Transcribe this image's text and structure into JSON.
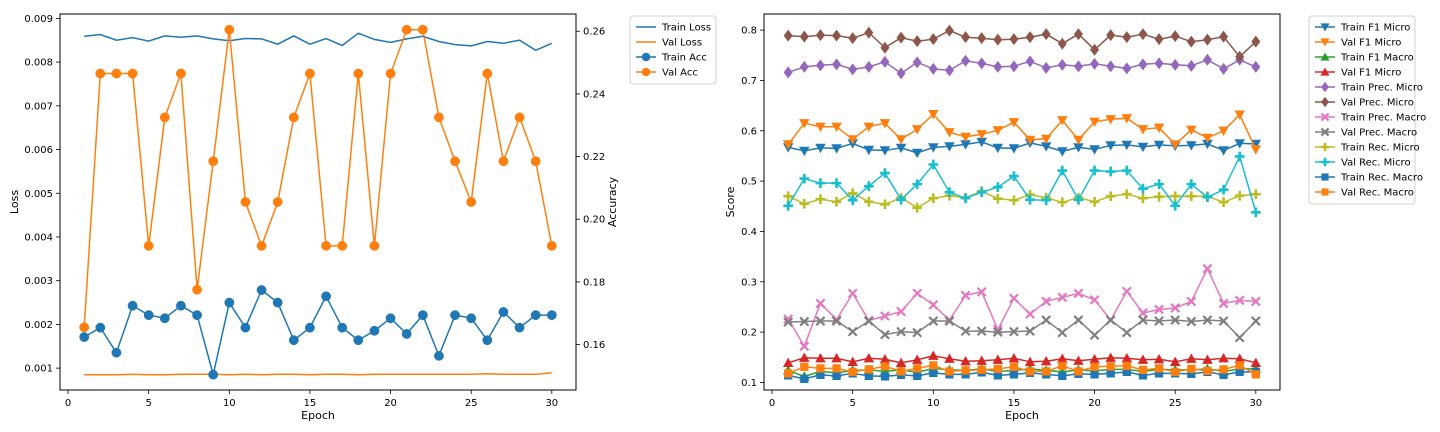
{
  "chart_data": [
    {
      "type": "line",
      "xlabel": "Epoch",
      "ylabel": "Loss",
      "y2label": "Accuracy",
      "xlim": [
        -0.5,
        31.5
      ],
      "ylim": [
        0.0005,
        0.0091
      ],
      "y2lim": [
        0.1455,
        0.2655
      ],
      "xticks": [
        0,
        5,
        10,
        15,
        20,
        25,
        30
      ],
      "yticks": [
        0.001,
        0.002,
        0.003,
        0.004,
        0.005,
        0.006,
        0.007,
        0.008,
        0.009
      ],
      "ytick_labels": [
        "0.001",
        "0.002",
        "0.003",
        "0.004",
        "0.005",
        "0.006",
        "0.007",
        "0.008",
        "0.009"
      ],
      "y2ticks": [
        0.16,
        0.18,
        0.2,
        0.22,
        0.24,
        0.26
      ],
      "y2tick_labels": [
        "0.16",
        "0.18",
        "0.20",
        "0.22",
        "0.24",
        "0.26"
      ],
      "grid": false,
      "legend_position": "outside-right-top",
      "x": [
        1,
        2,
        3,
        4,
        5,
        6,
        7,
        8,
        9,
        10,
        11,
        12,
        13,
        14,
        15,
        16,
        17,
        18,
        19,
        20,
        21,
        22,
        23,
        24,
        25,
        26,
        27,
        28,
        29,
        30
      ],
      "series": [
        {
          "name": "Train Loss",
          "axis": "left",
          "color": "#1f77b4",
          "marker": "none",
          "values": [
            0.00859,
            0.00863,
            0.0085,
            0.00856,
            0.00848,
            0.0086,
            0.00857,
            0.0086,
            0.00853,
            0.00849,
            0.00854,
            0.00853,
            0.00841,
            0.0086,
            0.00841,
            0.00854,
            0.00838,
            0.00866,
            0.00852,
            0.00845,
            0.00853,
            0.00859,
            0.00847,
            0.0084,
            0.00837,
            0.00847,
            0.00843,
            0.0085,
            0.00827,
            0.00843
          ]
        },
        {
          "name": "Val Loss",
          "axis": "left",
          "color": "#ff7f0e",
          "marker": "none",
          "values": [
            0.00085,
            0.00085,
            0.00085,
            0.00086,
            0.00085,
            0.00085,
            0.00086,
            0.00086,
            0.00086,
            0.00085,
            0.00086,
            0.00085,
            0.00086,
            0.00086,
            0.00085,
            0.00086,
            0.00086,
            0.00085,
            0.00086,
            0.00086,
            0.00086,
            0.00086,
            0.00086,
            0.00086,
            0.00086,
            0.00087,
            0.00086,
            0.00086,
            0.00086,
            0.00089
          ]
        },
        {
          "name": "Train Acc",
          "axis": "right",
          "color": "#1f77b4",
          "marker": "circle",
          "values": [
            0.1624,
            0.1654,
            0.1574,
            0.1724,
            0.1694,
            0.1684,
            0.1724,
            0.1694,
            0.1504,
            0.1734,
            0.1654,
            0.1774,
            0.1734,
            0.1614,
            0.1654,
            0.1754,
            0.1654,
            0.1614,
            0.1644,
            0.1684,
            0.1634,
            0.1694,
            0.1564,
            0.1694,
            0.1684,
            0.1614,
            0.1704,
            0.1654,
            0.1694,
            0.1694
          ]
        },
        {
          "name": "Val Acc",
          "axis": "right",
          "color": "#ff7f0e",
          "marker": "circle",
          "values": [
            0.1655,
            0.2465,
            0.2465,
            0.2465,
            0.1915,
            0.2325,
            0.2465,
            0.1775,
            0.2185,
            0.2605,
            0.2055,
            0.1915,
            0.2055,
            0.2325,
            0.2465,
            0.1915,
            0.1915,
            0.2465,
            0.1915,
            0.2465,
            0.2605,
            0.2605,
            0.2325,
            0.2185,
            0.2055,
            0.2465,
            0.2185,
            0.2325,
            0.2185,
            0.1915
          ]
        }
      ]
    },
    {
      "type": "line",
      "xlabel": "Epoch",
      "ylabel": "Score",
      "xlim": [
        -0.5,
        31.5
      ],
      "ylim": [
        0.085,
        0.832
      ],
      "xticks": [
        0,
        5,
        10,
        15,
        20,
        25,
        30
      ],
      "yticks": [
        0.1,
        0.2,
        0.3,
        0.4,
        0.5,
        0.6,
        0.7,
        0.8
      ],
      "ytick_labels": [
        "0.1",
        "0.2",
        "0.3",
        "0.4",
        "0.5",
        "0.6",
        "0.7",
        "0.8"
      ],
      "grid": false,
      "legend_position": "outside-right-top",
      "x": [
        1,
        2,
        3,
        4,
        5,
        6,
        7,
        8,
        9,
        10,
        11,
        12,
        13,
        14,
        15,
        16,
        17,
        18,
        19,
        20,
        21,
        22,
        23,
        24,
        25,
        26,
        27,
        28,
        29,
        30
      ],
      "series": [
        {
          "name": "Train F1 Micro",
          "color": "#1f77b4",
          "marker": "tri_down",
          "values": [
            0.567,
            0.56,
            0.566,
            0.565,
            0.575,
            0.562,
            0.561,
            0.566,
            0.556,
            0.567,
            0.569,
            0.573,
            0.578,
            0.566,
            0.565,
            0.576,
            0.569,
            0.559,
            0.567,
            0.563,
            0.571,
            0.572,
            0.568,
            0.572,
            0.57,
            0.571,
            0.574,
            0.561,
            0.575,
            0.574
          ]
        },
        {
          "name": "Val F1 Micro",
          "color": "#ff7f0e",
          "marker": "tri_down",
          "values": [
            0.573,
            0.615,
            0.608,
            0.608,
            0.583,
            0.608,
            0.615,
            0.583,
            0.603,
            0.633,
            0.597,
            0.588,
            0.593,
            0.601,
            0.617,
            0.582,
            0.584,
            0.621,
            0.582,
            0.618,
            0.623,
            0.625,
            0.603,
            0.606,
            0.573,
            0.602,
            0.586,
            0.6,
            0.632,
            0.563
          ]
        },
        {
          "name": "Train F1 Macro",
          "color": "#2ca02c",
          "marker": "tri_up",
          "values": [
            0.124,
            0.112,
            0.122,
            0.119,
            0.124,
            0.125,
            0.122,
            0.125,
            0.12,
            0.128,
            0.125,
            0.124,
            0.127,
            0.122,
            0.124,
            0.127,
            0.124,
            0.121,
            0.125,
            0.123,
            0.126,
            0.126,
            0.122,
            0.126,
            0.125,
            0.125,
            0.127,
            0.122,
            0.127,
            0.127
          ]
        },
        {
          "name": "Val F1 Micro",
          "color": "#d62728",
          "marker": "tri_up",
          "values": [
            0.139,
            0.149,
            0.148,
            0.148,
            0.141,
            0.148,
            0.146,
            0.139,
            0.145,
            0.153,
            0.147,
            0.142,
            0.143,
            0.145,
            0.148,
            0.141,
            0.142,
            0.147,
            0.143,
            0.146,
            0.149,
            0.148,
            0.145,
            0.146,
            0.141,
            0.147,
            0.145,
            0.148,
            0.147,
            0.139
          ]
        },
        {
          "name": "Train Prec. Micro",
          "color": "#9467bd",
          "marker": "diamond",
          "values": [
            0.716,
            0.727,
            0.73,
            0.732,
            0.722,
            0.727,
            0.737,
            0.714,
            0.736,
            0.723,
            0.72,
            0.739,
            0.734,
            0.727,
            0.728,
            0.738,
            0.725,
            0.731,
            0.728,
            0.733,
            0.728,
            0.724,
            0.732,
            0.734,
            0.731,
            0.729,
            0.741,
            0.723,
            0.741,
            0.727
          ]
        },
        {
          "name": "Val Prec. Micro",
          "color": "#8c564b",
          "marker": "diamond",
          "values": [
            0.789,
            0.787,
            0.79,
            0.789,
            0.784,
            0.795,
            0.765,
            0.785,
            0.778,
            0.782,
            0.799,
            0.786,
            0.784,
            0.781,
            0.782,
            0.786,
            0.792,
            0.773,
            0.792,
            0.761,
            0.79,
            0.786,
            0.792,
            0.782,
            0.788,
            0.777,
            0.781,
            0.787,
            0.747,
            0.777
          ]
        },
        {
          "name": "Train Prec. Macro",
          "color": "#e377c2",
          "marker": "x",
          "values": [
            0.226,
            0.172,
            0.257,
            0.225,
            0.277,
            0.223,
            0.232,
            0.241,
            0.277,
            0.254,
            0.224,
            0.273,
            0.28,
            0.205,
            0.267,
            0.236,
            0.261,
            0.269,
            0.277,
            0.264,
            0.224,
            0.281,
            0.238,
            0.245,
            0.248,
            0.261,
            0.326,
            0.257,
            0.263,
            0.261
          ]
        },
        {
          "name": "Val Prec. Macro",
          "color": "#7f7f7f",
          "marker": "x",
          "values": [
            0.22,
            0.221,
            0.222,
            0.222,
            0.201,
            0.222,
            0.195,
            0.201,
            0.199,
            0.222,
            0.222,
            0.202,
            0.202,
            0.2,
            0.201,
            0.202,
            0.224,
            0.199,
            0.224,
            0.194,
            0.224,
            0.199,
            0.224,
            0.222,
            0.224,
            0.221,
            0.224,
            0.222,
            0.189,
            0.222
          ]
        },
        {
          "name": "Train Rec. Micro",
          "color": "#bcbd22",
          "marker": "plus",
          "values": [
            0.47,
            0.455,
            0.464,
            0.459,
            0.476,
            0.459,
            0.454,
            0.467,
            0.447,
            0.466,
            0.471,
            0.467,
            0.48,
            0.465,
            0.462,
            0.473,
            0.467,
            0.458,
            0.467,
            0.459,
            0.47,
            0.474,
            0.466,
            0.469,
            0.47,
            0.47,
            0.47,
            0.458,
            0.471,
            0.474
          ]
        },
        {
          "name": "Val Rec. Micro",
          "color": "#17becf",
          "marker": "plus",
          "values": [
            0.451,
            0.505,
            0.496,
            0.496,
            0.462,
            0.49,
            0.516,
            0.463,
            0.494,
            0.533,
            0.478,
            0.466,
            0.478,
            0.488,
            0.51,
            0.463,
            0.462,
            0.521,
            0.463,
            0.521,
            0.519,
            0.521,
            0.485,
            0.494,
            0.451,
            0.494,
            0.468,
            0.483,
            0.549,
            0.438
          ]
        },
        {
          "name": "Train Rec. Macro",
          "color": "#1f77b4",
          "marker": "square",
          "values": [
            0.114,
            0.107,
            0.115,
            0.113,
            0.118,
            0.113,
            0.112,
            0.115,
            0.113,
            0.119,
            0.116,
            0.116,
            0.12,
            0.114,
            0.116,
            0.119,
            0.116,
            0.113,
            0.117,
            0.116,
            0.118,
            0.121,
            0.114,
            0.118,
            0.118,
            0.117,
            0.121,
            0.115,
            0.121,
            0.121
          ]
        },
        {
          "name": "Val Rec. Macro",
          "color": "#ff7f0e",
          "marker": "square",
          "values": [
            0.118,
            0.131,
            0.128,
            0.128,
            0.121,
            0.126,
            0.132,
            0.122,
            0.128,
            0.134,
            0.122,
            0.124,
            0.125,
            0.127,
            0.131,
            0.122,
            0.122,
            0.133,
            0.122,
            0.131,
            0.132,
            0.133,
            0.125,
            0.128,
            0.121,
            0.127,
            0.123,
            0.126,
            0.134,
            0.116
          ]
        }
      ]
    }
  ]
}
